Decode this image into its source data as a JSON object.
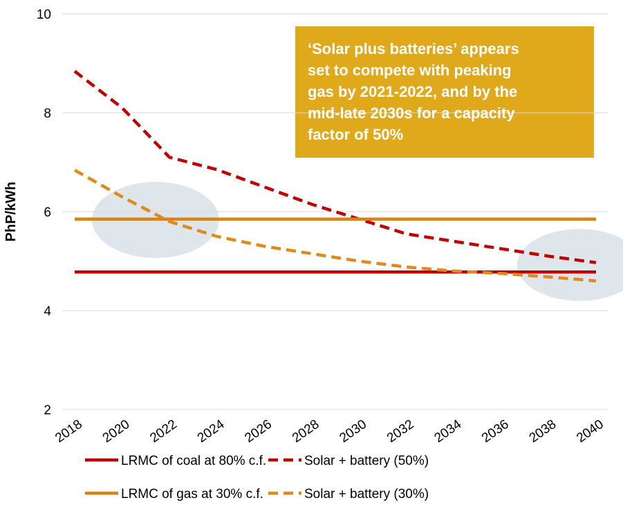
{
  "chart_data": {
    "type": "line",
    "y_label": "PhP/kWh",
    "annotation": [
      "‘Solar plus batteries’ appears",
      "set to compete with peaking",
      "gas by 2021-2022, and by the",
      "mid-late 2030s for a capacity",
      "factor of 50%"
    ],
    "x": [
      2018,
      2020,
      2022,
      2024,
      2026,
      2028,
      2030,
      2032,
      2034,
      2036,
      2038,
      2040
    ],
    "xlim": [
      2018,
      2040
    ],
    "xticks": [
      2018,
      2020,
      2022,
      2024,
      2026,
      2028,
      2030,
      2032,
      2034,
      2036,
      2038,
      2040
    ],
    "ylim": [
      2,
      10
    ],
    "yticks": [
      2,
      4,
      6,
      8,
      10
    ],
    "grid": true,
    "series": [
      {
        "name": "LRMC of coal at 80% c.f.",
        "color": "#c00000",
        "style": "solid",
        "values": [
          4.78,
          4.78,
          4.78,
          4.78,
          4.78,
          4.78,
          4.78,
          4.78,
          4.78,
          4.78,
          4.78,
          4.78
        ]
      },
      {
        "name": "Solar + battery (50%)",
        "color": "#c00000",
        "style": "dashed",
        "values": [
          8.84,
          8.1,
          7.1,
          6.85,
          6.5,
          6.15,
          5.85,
          5.55,
          5.4,
          5.25,
          5.1,
          4.97
        ]
      },
      {
        "name": "LRMC of gas at 30% c.f.",
        "color": "#d9821a",
        "style": "solid",
        "values": [
          5.85,
          5.85,
          5.85,
          5.85,
          5.85,
          5.85,
          5.85,
          5.85,
          5.85,
          5.85,
          5.85,
          5.85
        ]
      },
      {
        "name": "Solar + battery (30%)",
        "color": "#e08a1e",
        "style": "dashed",
        "values": [
          6.84,
          6.3,
          5.8,
          5.5,
          5.3,
          5.15,
          5.0,
          4.88,
          4.8,
          4.75,
          4.68,
          4.6
        ]
      }
    ]
  }
}
